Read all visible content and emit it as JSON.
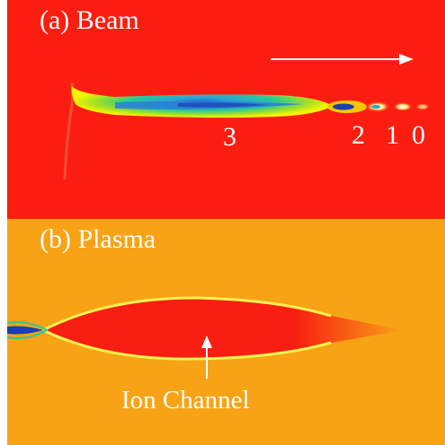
{
  "panels": {
    "beam": {
      "title": "(a) Beam",
      "bunch_labels": [
        "3",
        "2",
        "1",
        "0"
      ],
      "direction_arrow": "arrow-right",
      "colors": {
        "background": "#fb1e10",
        "core": "#2fa0d8",
        "mid": "#26c99a",
        "outer": "#f7f400"
      }
    },
    "plasma": {
      "title": "(b) Plasma",
      "annotation": "Ion Channel",
      "annotation_arrow": "arrow-up",
      "colors": {
        "background": "#f8a316",
        "channel": "#f81e12",
        "sheath": "#f7f250"
      }
    }
  }
}
